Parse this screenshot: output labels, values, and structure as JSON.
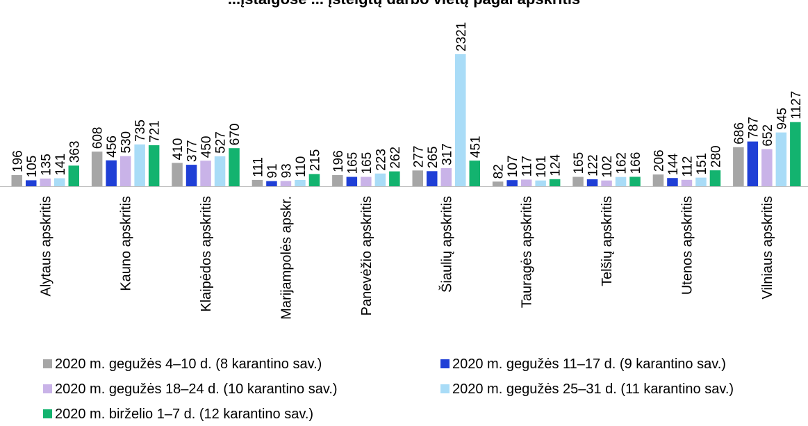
{
  "chart_data": {
    "type": "bar",
    "title": "...įstaigose ... įsteigtų darbo vietų pagal apskritis",
    "categories": [
      "Alytaus apskritis",
      "Kauno apskritis",
      "Klaipėdos apskritis",
      "Marijampolės apskr.",
      "Panevėžio apskritis",
      "Šiaulių apskritis",
      "Tauragės apskritis",
      "Telšių apskritis",
      "Utenos apskritis",
      "Vilniaus apskritis"
    ],
    "series": [
      {
        "name": "2020 m. gegužės 4–10 d. (8 karantino sav.)",
        "color": "#a6a6a6",
        "values": [
          196,
          608,
          410,
          111,
          196,
          277,
          82,
          165,
          206,
          686
        ]
      },
      {
        "name": "2020 m. gegužės 11–17 d. (9 karantino sav.)",
        "color": "#1f3fd6",
        "values": [
          105,
          456,
          377,
          91,
          165,
          265,
          107,
          122,
          144,
          787
        ]
      },
      {
        "name": "2020 m. gegužės 18–24 d. (10 karantino sav.)",
        "color": "#c9b3e8",
        "values": [
          135,
          530,
          450,
          93,
          165,
          317,
          117,
          102,
          112,
          652
        ]
      },
      {
        "name": "2020 m. gegužės 25–31 d. (11 karantino sav.)",
        "color": "#a9dcf7",
        "values": [
          141,
          735,
          527,
          110,
          223,
          2321,
          101,
          162,
          151,
          945
        ]
      },
      {
        "name": "2020 m. birželio 1–7 d. (12 karantino sav.)",
        "color": "#13b36f",
        "values": [
          363,
          721,
          670,
          215,
          262,
          451,
          124,
          166,
          280,
          1127
        ]
      }
    ],
    "ylim": [
      0,
      2321
    ],
    "grid": false,
    "legend_position": "bottom"
  }
}
